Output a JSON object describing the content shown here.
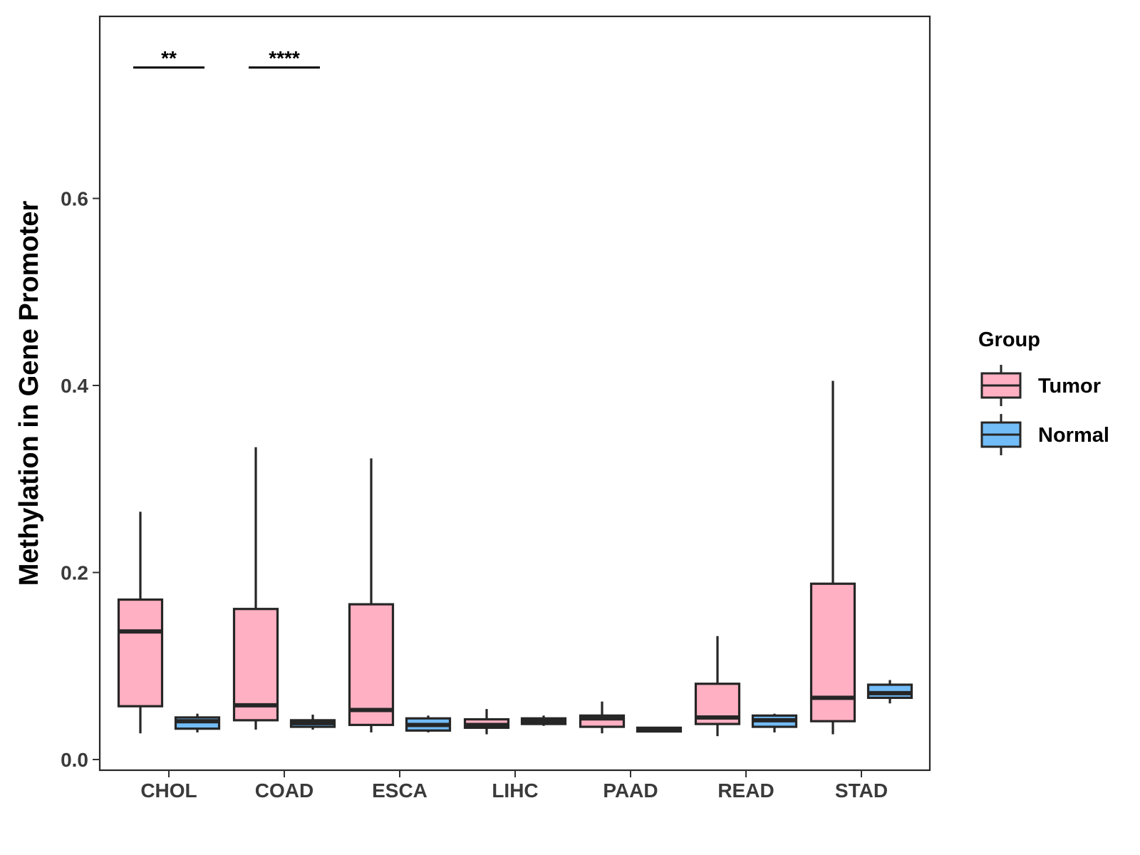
{
  "chart_data": {
    "type": "box",
    "title": "",
    "xlabel": "",
    "ylabel": "Methylation in Gene Promoter",
    "ylim": [
      -0.012,
      0.79
    ],
    "yticks": [
      0.0,
      0.2,
      0.4,
      0.6
    ],
    "ytick_labels": [
      "0.0",
      "0.2",
      "0.4",
      "0.6"
    ],
    "categories": [
      "CHOL",
      "COAD",
      "ESCA",
      "LIHC",
      "PAAD",
      "READ",
      "STAD"
    ],
    "legend": {
      "title": "Group",
      "position": "right",
      "entries": [
        {
          "name": "Tumor",
          "fill": "#FFB0C2"
        },
        {
          "name": "Normal",
          "fill": "#72BCF7"
        }
      ]
    },
    "colors": {
      "box_stroke": "#262626",
      "axis": "#000000",
      "panel_border": "#262626"
    },
    "series": [
      {
        "name": "Tumor",
        "fill": "#FFB0C2",
        "boxes": [
          {
            "category": "CHOL",
            "min": 0.028,
            "q1": 0.057,
            "median": 0.137,
            "q3": 0.171,
            "max": 0.265
          },
          {
            "category": "COAD",
            "min": 0.032,
            "q1": 0.042,
            "median": 0.058,
            "q3": 0.161,
            "max": 0.334
          },
          {
            "category": "ESCA",
            "min": 0.029,
            "q1": 0.037,
            "median": 0.053,
            "q3": 0.166,
            "max": 0.322
          },
          {
            "category": "LIHC",
            "min": 0.027,
            "q1": 0.034,
            "median": 0.037,
            "q3": 0.043,
            "max": 0.054
          },
          {
            "category": "PAAD",
            "min": 0.028,
            "q1": 0.035,
            "median": 0.044,
            "q3": 0.047,
            "max": 0.062
          },
          {
            "category": "READ",
            "min": 0.025,
            "q1": 0.038,
            "median": 0.045,
            "q3": 0.081,
            "max": 0.132
          },
          {
            "category": "STAD",
            "min": 0.027,
            "q1": 0.041,
            "median": 0.066,
            "q3": 0.188,
            "max": 0.405
          }
        ]
      },
      {
        "name": "Normal",
        "fill": "#72BCF7",
        "boxes": [
          {
            "category": "CHOL",
            "min": 0.029,
            "q1": 0.033,
            "median": 0.041,
            "q3": 0.045,
            "max": 0.049
          },
          {
            "category": "COAD",
            "min": 0.032,
            "q1": 0.035,
            "median": 0.039,
            "q3": 0.042,
            "max": 0.048
          },
          {
            "category": "ESCA",
            "min": 0.029,
            "q1": 0.031,
            "median": 0.037,
            "q3": 0.044,
            "max": 0.047
          },
          {
            "category": "LIHC",
            "min": 0.036,
            "q1": 0.038,
            "median": 0.041,
            "q3": 0.044,
            "max": 0.047
          },
          {
            "category": "PAAD",
            "min": 0.029,
            "q1": 0.03,
            "median": 0.032,
            "q3": 0.034,
            "max": 0.035
          },
          {
            "category": "READ",
            "min": 0.029,
            "q1": 0.035,
            "median": 0.042,
            "q3": 0.047,
            "max": 0.049
          },
          {
            "category": "STAD",
            "min": 0.06,
            "q1": 0.066,
            "median": 0.071,
            "q3": 0.08,
            "max": 0.085
          }
        ]
      }
    ],
    "annotations": [
      {
        "category": "CHOL",
        "label": "**",
        "y": 0.74
      },
      {
        "category": "COAD",
        "label": "****",
        "y": 0.74
      }
    ]
  }
}
